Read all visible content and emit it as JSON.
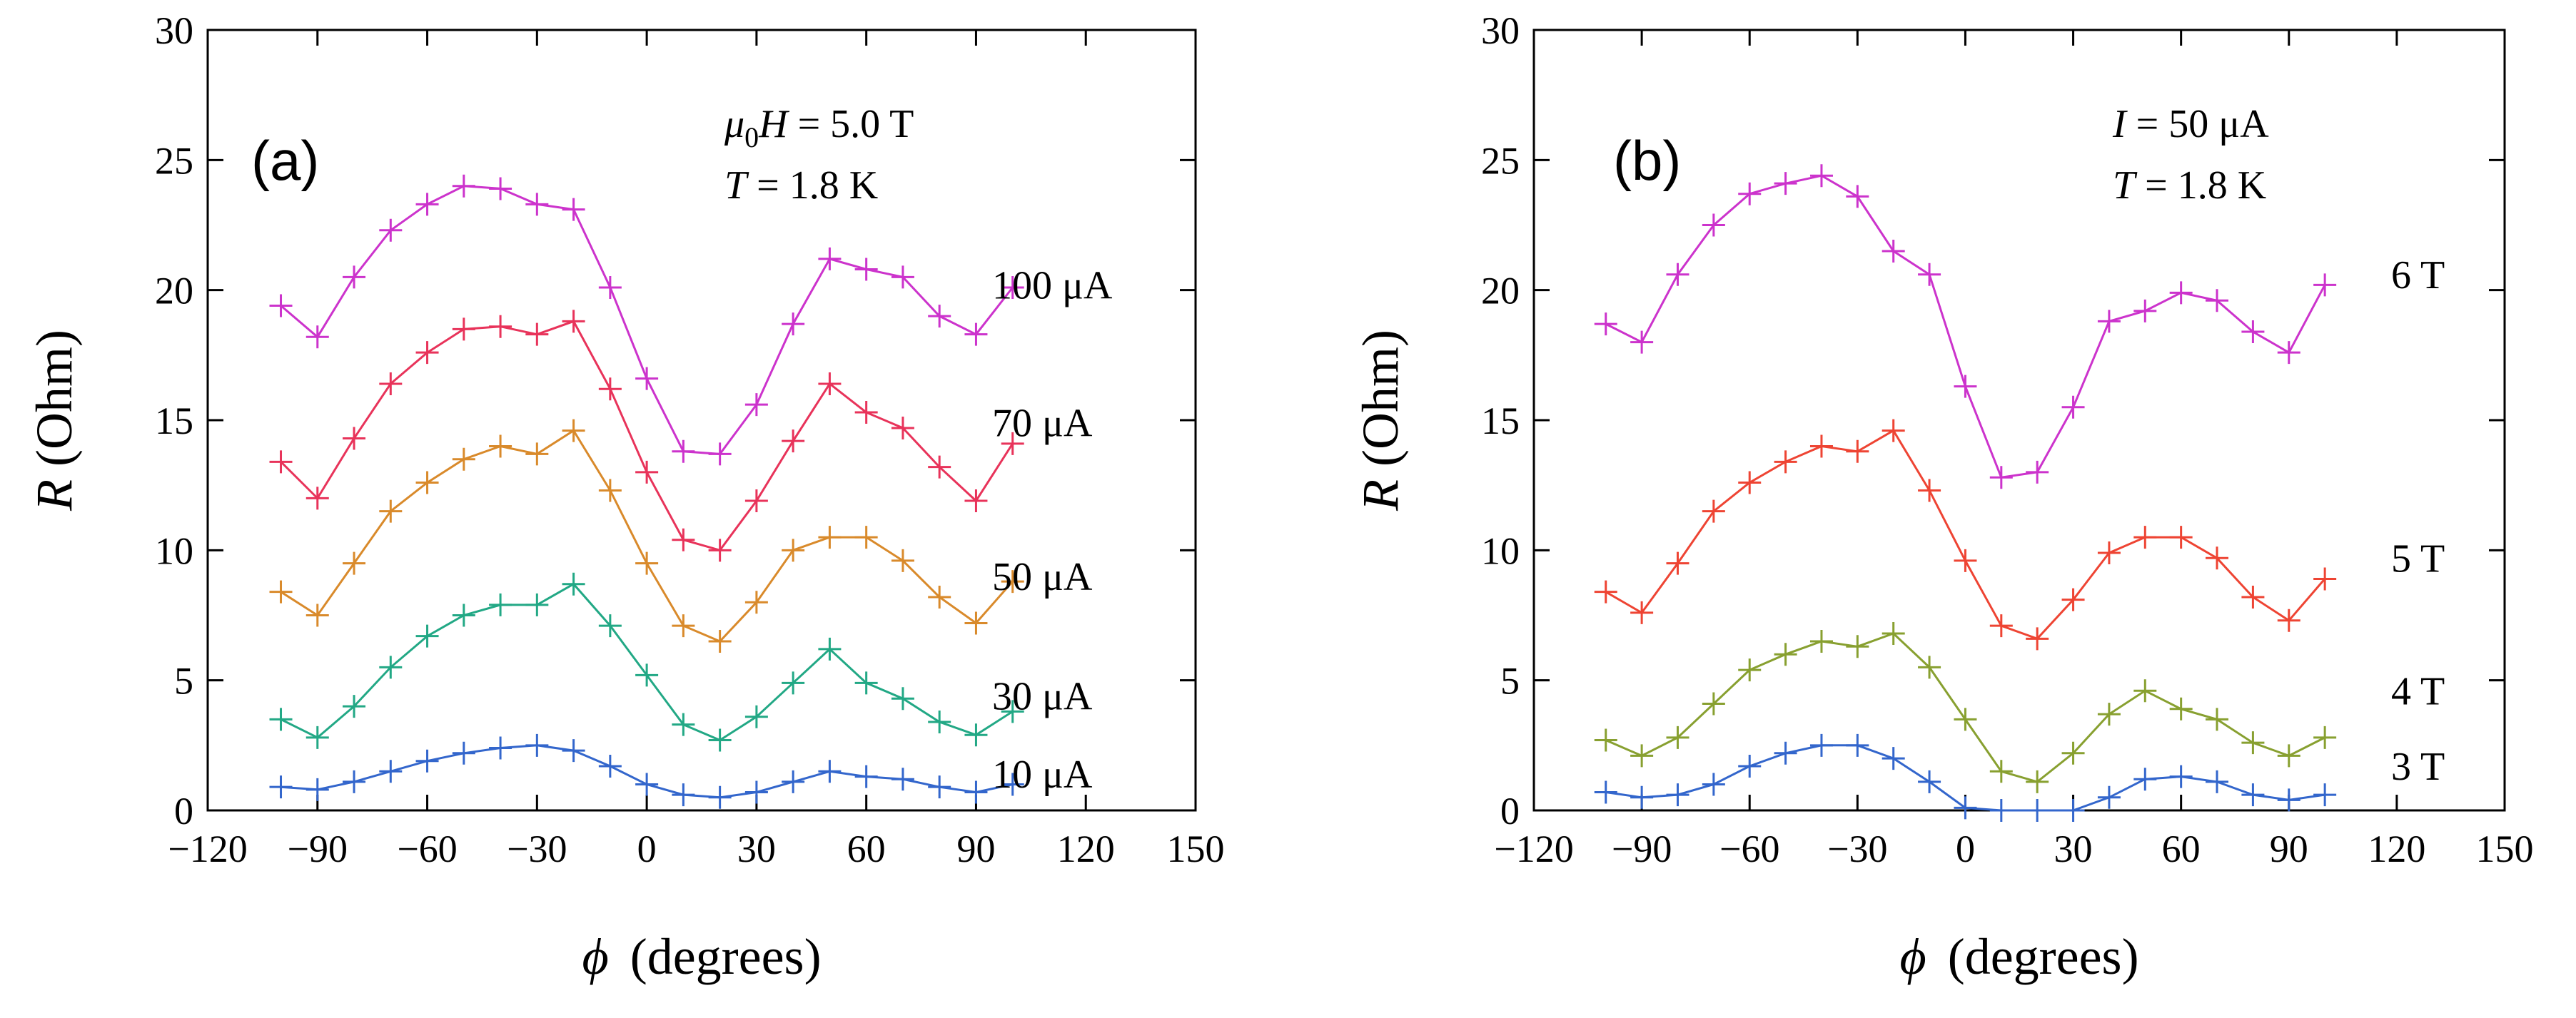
{
  "chart_data": [
    {
      "type": "line",
      "panel_label": "(a)",
      "xlabel_symbol": "ϕ",
      "xlabel_unit": "(degrees)",
      "ylabel_symbol": "R",
      "ylabel_unit": "(Ohm)",
      "xlim": [
        -120,
        150
      ],
      "ylim": [
        0,
        30
      ],
      "xticks": [
        -120,
        -90,
        -60,
        -30,
        0,
        30,
        60,
        90,
        120,
        150
      ],
      "xticklabels": [
        "−120",
        "−90",
        "−60",
        "−30",
        "0",
        "30",
        "60",
        "90",
        "120",
        "150"
      ],
      "yticks": [
        0,
        5,
        10,
        15,
        20,
        25,
        30
      ],
      "yticklabels": [
        "0",
        "5",
        "10",
        "15",
        "20",
        "25",
        "30"
      ],
      "conditions": {
        "field": {
          "symbol": "μ",
          "sub": "0",
          "var": "H",
          "value": " = 5.0 T"
        },
        "temp": {
          "var": "T",
          "value": " = 1.8 K"
        }
      },
      "x": [
        -100,
        -90,
        -80,
        -70,
        -60,
        -50,
        -40,
        -30,
        -20,
        -10,
        0,
        10,
        20,
        30,
        40,
        50,
        60,
        70,
        80,
        90,
        100
      ],
      "series": [
        {
          "name": "100 μA",
          "color": "#cc33cc",
          "label_y": 20.2,
          "values": [
            19.4,
            18.2,
            20.5,
            22.3,
            23.3,
            24.0,
            23.9,
            23.3,
            23.1,
            20.1,
            16.6,
            13.8,
            13.7,
            15.6,
            18.7,
            21.2,
            20.8,
            20.5,
            19.0,
            18.3,
            20.1
          ]
        },
        {
          "name": "70 μA",
          "color": "#e8335a",
          "label_y": 14.9,
          "values": [
            13.4,
            12.0,
            14.3,
            16.4,
            17.6,
            18.5,
            18.6,
            18.3,
            18.8,
            16.2,
            13.0,
            10.4,
            10.0,
            11.9,
            14.2,
            16.4,
            15.3,
            14.7,
            13.2,
            11.9,
            14.1
          ]
        },
        {
          "name": "50 μA",
          "color": "#d98a2b",
          "label_y": 9.0,
          "values": [
            8.4,
            7.5,
            9.5,
            11.5,
            12.6,
            13.5,
            14.0,
            13.7,
            14.6,
            12.3,
            9.5,
            7.1,
            6.5,
            8.0,
            10.0,
            10.5,
            10.5,
            9.6,
            8.2,
            7.2,
            8.8
          ]
        },
        {
          "name": "30 μA",
          "color": "#22a885",
          "label_y": 4.4,
          "values": [
            3.5,
            2.8,
            4.0,
            5.5,
            6.7,
            7.5,
            7.9,
            7.9,
            8.7,
            7.1,
            5.2,
            3.3,
            2.7,
            3.6,
            4.9,
            6.2,
            4.9,
            4.3,
            3.4,
            2.9,
            3.8
          ]
        },
        {
          "name": "10 μA",
          "color": "#3366cc",
          "label_y": 1.4,
          "values": [
            0.9,
            0.8,
            1.1,
            1.5,
            1.9,
            2.2,
            2.4,
            2.5,
            2.3,
            1.7,
            1.0,
            0.6,
            0.5,
            0.7,
            1.1,
            1.5,
            1.3,
            1.2,
            0.9,
            0.7,
            1.0
          ]
        }
      ]
    },
    {
      "type": "line",
      "panel_label": "(b)",
      "xlabel_symbol": "ϕ",
      "xlabel_unit": "(degrees)",
      "ylabel_symbol": "R",
      "ylabel_unit": "(Ohm)",
      "xlim": [
        -120,
        150
      ],
      "ylim": [
        0,
        30
      ],
      "xticks": [
        -120,
        -90,
        -60,
        -30,
        0,
        30,
        60,
        90,
        120,
        150
      ],
      "xticklabels": [
        "−120",
        "−90",
        "−60",
        "−30",
        "0",
        "30",
        "60",
        "90",
        "120",
        "150"
      ],
      "yticks": [
        0,
        5,
        10,
        15,
        20,
        25,
        30
      ],
      "yticklabels": [
        "0",
        "5",
        "10",
        "15",
        "20",
        "25",
        "30"
      ],
      "conditions": {
        "current": {
          "var": "I",
          "value": " = 50 μA"
        },
        "temp": {
          "var": "T",
          "value": " = 1.8 K"
        }
      },
      "x": [
        -100,
        -90,
        -80,
        -70,
        -60,
        -50,
        -40,
        -30,
        -20,
        -10,
        0,
        10,
        20,
        30,
        40,
        50,
        60,
        70,
        80,
        90,
        100
      ],
      "series": [
        {
          "name": "6 T",
          "color": "#cc33cc",
          "label_y": 20.6,
          "values": [
            18.7,
            18.0,
            20.6,
            22.5,
            23.7,
            24.1,
            24.4,
            23.6,
            21.5,
            20.6,
            16.3,
            12.8,
            13.0,
            15.5,
            18.8,
            19.2,
            19.9,
            19.6,
            18.4,
            17.6,
            20.2
          ]
        },
        {
          "name": "5 T",
          "color": "#ee4433",
          "label_y": 9.7,
          "values": [
            8.4,
            7.6,
            9.5,
            11.5,
            12.6,
            13.4,
            14.0,
            13.8,
            14.6,
            12.3,
            9.6,
            7.1,
            6.6,
            8.1,
            9.9,
            10.5,
            10.5,
            9.7,
            8.2,
            7.3,
            8.9
          ]
        },
        {
          "name": "4 T",
          "color": "#88a030",
          "label_y": 4.6,
          "values": [
            2.7,
            2.1,
            2.8,
            4.1,
            5.4,
            6.0,
            6.5,
            6.3,
            6.8,
            5.5,
            3.5,
            1.5,
            1.1,
            2.2,
            3.7,
            4.6,
            3.9,
            3.5,
            2.6,
            2.1,
            2.8
          ]
        },
        {
          "name": "3 T",
          "color": "#3366cc",
          "label_y": 1.7,
          "values": [
            0.7,
            0.5,
            0.6,
            1.0,
            1.7,
            2.2,
            2.5,
            2.5,
            2.0,
            1.1,
            0.1,
            0.0,
            0.0,
            0.0,
            0.5,
            1.2,
            1.3,
            1.1,
            0.6,
            0.4,
            0.6
          ]
        }
      ]
    }
  ]
}
